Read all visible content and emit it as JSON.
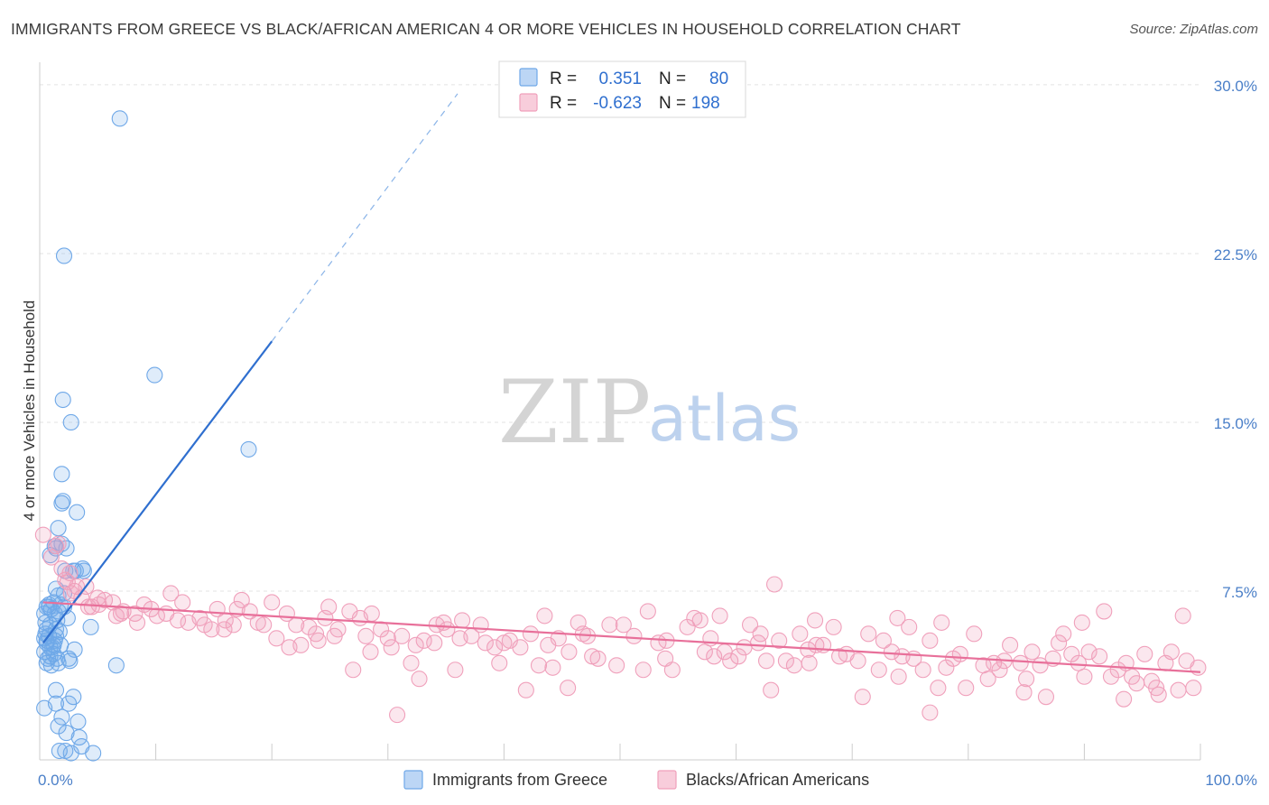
{
  "title": "IMMIGRANTS FROM GREECE VS BLACK/AFRICAN AMERICAN 4 OR MORE VEHICLES IN HOUSEHOLD CORRELATION CHART",
  "source": "Source: ZipAtlas.com",
  "watermark": {
    "zip": "ZIP",
    "atlas": "atlas"
  },
  "legend": {
    "r_label": "R =",
    "n_label": "N =",
    "rows": [
      {
        "r": "0.351",
        "n": "80",
        "color": "#6fa8e8"
      },
      {
        "r": "-0.623",
        "n": "198",
        "color": "#f0a0bb"
      }
    ]
  },
  "bottom_legend": [
    {
      "label": "Immigrants from Greece",
      "color": "#6fa8e8"
    },
    {
      "label": "Blacks/African Americans",
      "color": "#f0a0bb"
    }
  ],
  "chart_data": {
    "type": "scatter",
    "title": "IMMIGRANTS FROM GREECE VS BLACK/AFRICAN AMERICAN 4 OR MORE VEHICLES IN HOUSEHOLD CORRELATION CHART",
    "xlabel": "",
    "ylabel": "4 or more Vehicles in Household",
    "xlim": [
      0,
      100
    ],
    "ylim": [
      0,
      31
    ],
    "x_ticks": [
      "0.0%",
      "100.0%"
    ],
    "y_ticks": [
      {
        "value": 7.5,
        "label": "7.5%"
      },
      {
        "value": 15.0,
        "label": "15.0%"
      },
      {
        "value": 22.5,
        "label": "22.5%"
      },
      {
        "value": 30.0,
        "label": "30.0%"
      }
    ],
    "grid": true,
    "legend_position": "top-center",
    "series": [
      {
        "name": "Immigrants from Greece",
        "color": "#6fa8e8",
        "line_color": "#2f6fcf",
        "trend": {
          "x0": 0.3,
          "y0": 5.2,
          "x1": 20.0,
          "y1": 18.6,
          "dash_x1": 36.0,
          "dash_y1": 29.6
        },
        "points": [
          [
            6.9,
            28.5
          ],
          [
            2.1,
            22.4
          ],
          [
            9.9,
            17.1
          ],
          [
            2.0,
            16.0
          ],
          [
            2.7,
            15.0
          ],
          [
            18.0,
            13.8
          ],
          [
            1.9,
            12.7
          ],
          [
            1.9,
            11.4
          ],
          [
            2.0,
            11.5
          ],
          [
            3.2,
            11.0
          ],
          [
            1.6,
            10.3
          ],
          [
            1.3,
            9.5
          ],
          [
            1.4,
            9.4
          ],
          [
            1.9,
            9.6
          ],
          [
            2.3,
            9.4
          ],
          [
            0.9,
            9.1
          ],
          [
            2.9,
            8.4
          ],
          [
            2.2,
            8.4
          ],
          [
            3.7,
            8.5
          ],
          [
            3.8,
            8.4
          ],
          [
            3.1,
            8.4
          ],
          [
            1.4,
            7.6
          ],
          [
            2.1,
            7.4
          ],
          [
            1.6,
            7.3
          ],
          [
            0.6,
            6.8
          ],
          [
            1.0,
            6.7
          ],
          [
            2.1,
            6.8
          ],
          [
            0.8,
            6.8
          ],
          [
            1.3,
            6.5
          ],
          [
            0.4,
            6.5
          ],
          [
            1.6,
            6.6
          ],
          [
            1.5,
            6.2
          ],
          [
            0.6,
            5.8
          ],
          [
            0.9,
            6.0
          ],
          [
            1.4,
            5.8
          ],
          [
            0.5,
            5.6
          ],
          [
            0.8,
            5.5
          ],
          [
            0.4,
            5.4
          ],
          [
            1.4,
            5.5
          ],
          [
            0.6,
            5.3
          ],
          [
            1.3,
            5.3
          ],
          [
            0.6,
            5.2
          ],
          [
            0.9,
            5.0
          ],
          [
            1.2,
            5.1
          ],
          [
            1.8,
            5.1
          ],
          [
            0.4,
            4.8
          ],
          [
            1.2,
            4.7
          ],
          [
            0.7,
            4.5
          ],
          [
            0.6,
            4.3
          ],
          [
            1.6,
            4.3
          ],
          [
            2.6,
            4.4
          ],
          [
            0.9,
            4.6
          ],
          [
            1.5,
            4.5
          ],
          [
            2.5,
            4.5
          ],
          [
            6.6,
            4.2
          ],
          [
            4.4,
            5.9
          ],
          [
            1.4,
            3.1
          ],
          [
            2.9,
            2.8
          ],
          [
            2.5,
            2.5
          ],
          [
            1.4,
            2.5
          ],
          [
            0.4,
            2.3
          ],
          [
            1.9,
            1.9
          ],
          [
            2.3,
            1.2
          ],
          [
            3.3,
            1.7
          ],
          [
            3.4,
            1.0
          ],
          [
            1.6,
            1.5
          ],
          [
            1.7,
            0.4
          ],
          [
            2.7,
            0.3
          ],
          [
            4.6,
            0.3
          ],
          [
            3.6,
            0.6
          ],
          [
            2.2,
            0.4
          ],
          [
            0.8,
            6.9
          ],
          [
            1.8,
            6.9
          ],
          [
            1.1,
            5.0
          ],
          [
            3.0,
            4.9
          ],
          [
            1.0,
            4.2
          ],
          [
            1.7,
            5.7
          ],
          [
            0.5,
            6.1
          ],
          [
            2.4,
            6.3
          ],
          [
            1.2,
            7.0
          ]
        ]
      },
      {
        "name": "Blacks/African Americans",
        "color": "#f0a0bb",
        "line_color": "#e8709a",
        "trend": {
          "x0": 0.3,
          "y0": 7.0,
          "x1": 100.0,
          "y1": 3.9
        },
        "points": [
          [
            0.3,
            10.0
          ],
          [
            1.4,
            9.5
          ],
          [
            1.6,
            9.6
          ],
          [
            1.9,
            8.5
          ],
          [
            2.2,
            8.0
          ],
          [
            2.6,
            8.3
          ],
          [
            3.2,
            7.7
          ],
          [
            4.0,
            7.7
          ],
          [
            3.0,
            7.5
          ],
          [
            5.6,
            7.1
          ],
          [
            4.2,
            6.8
          ],
          [
            5.1,
            6.9
          ],
          [
            6.6,
            6.4
          ],
          [
            7.2,
            6.6
          ],
          [
            8.2,
            6.5
          ],
          [
            9.0,
            6.9
          ],
          [
            9.6,
            6.7
          ],
          [
            10.9,
            6.5
          ],
          [
            11.3,
            7.4
          ],
          [
            11.9,
            6.2
          ],
          [
            12.3,
            7.0
          ],
          [
            12.8,
            6.1
          ],
          [
            13.8,
            6.3
          ],
          [
            14.2,
            6.0
          ],
          [
            14.8,
            5.8
          ],
          [
            15.3,
            6.7
          ],
          [
            15.9,
            5.8
          ],
          [
            16.0,
            6.2
          ],
          [
            17.4,
            7.1
          ],
          [
            17.0,
            6.7
          ],
          [
            18.1,
            6.6
          ],
          [
            18.8,
            6.1
          ],
          [
            19.3,
            6.0
          ],
          [
            20.0,
            7.0
          ],
          [
            20.4,
            5.4
          ],
          [
            21.3,
            6.5
          ],
          [
            22.1,
            6.0
          ],
          [
            22.5,
            5.1
          ],
          [
            23.2,
            5.9
          ],
          [
            24.0,
            5.3
          ],
          [
            24.6,
            6.3
          ],
          [
            25.4,
            5.5
          ],
          [
            26.7,
            6.6
          ],
          [
            27.6,
            6.3
          ],
          [
            28.1,
            5.5
          ],
          [
            28.6,
            6.5
          ],
          [
            29.4,
            5.8
          ],
          [
            30.0,
            5.4
          ],
          [
            30.3,
            5.0
          ],
          [
            31.2,
            5.5
          ],
          [
            32.0,
            4.3
          ],
          [
            32.4,
            5.1
          ],
          [
            33.1,
            5.3
          ],
          [
            34.0,
            5.2
          ],
          [
            34.8,
            6.1
          ],
          [
            35.1,
            5.8
          ],
          [
            36.2,
            5.4
          ],
          [
            36.4,
            6.2
          ],
          [
            37.2,
            5.5
          ],
          [
            38.0,
            6.0
          ],
          [
            38.4,
            5.2
          ],
          [
            39.2,
            5.0
          ],
          [
            40.0,
            5.2
          ],
          [
            40.5,
            5.3
          ],
          [
            41.4,
            5.0
          ],
          [
            42.3,
            5.6
          ],
          [
            43.0,
            4.2
          ],
          [
            43.8,
            5.1
          ],
          [
            44.7,
            5.4
          ],
          [
            45.6,
            4.8
          ],
          [
            46.4,
            6.1
          ],
          [
            46.8,
            5.6
          ],
          [
            47.2,
            5.5
          ],
          [
            47.6,
            4.6
          ],
          [
            48.1,
            4.5
          ],
          [
            49.1,
            6.0
          ],
          [
            49.7,
            4.2
          ],
          [
            50.3,
            6.0
          ],
          [
            51.2,
            5.5
          ],
          [
            52.0,
            4.0
          ],
          [
            52.4,
            6.6
          ],
          [
            53.3,
            5.2
          ],
          [
            54.0,
            5.3
          ],
          [
            54.5,
            4.0
          ],
          [
            55.8,
            5.9
          ],
          [
            56.4,
            6.3
          ],
          [
            57.3,
            4.8
          ],
          [
            57.8,
            5.4
          ],
          [
            58.1,
            4.6
          ],
          [
            58.6,
            6.4
          ],
          [
            59.5,
            4.4
          ],
          [
            60.2,
            4.6
          ],
          [
            61.2,
            6.0
          ],
          [
            61.9,
            5.2
          ],
          [
            62.6,
            4.4
          ],
          [
            63.3,
            7.8
          ],
          [
            63.7,
            5.3
          ],
          [
            64.3,
            4.4
          ],
          [
            65.0,
            4.2
          ],
          [
            65.5,
            5.6
          ],
          [
            66.2,
            4.9
          ],
          [
            66.9,
            5.1
          ],
          [
            67.5,
            5.1
          ],
          [
            68.4,
            5.9
          ],
          [
            68.9,
            4.6
          ],
          [
            69.5,
            4.7
          ],
          [
            70.5,
            4.4
          ],
          [
            71.4,
            5.6
          ],
          [
            72.3,
            4.0
          ],
          [
            72.7,
            5.3
          ],
          [
            73.4,
            4.8
          ],
          [
            74.3,
            4.6
          ],
          [
            74.9,
            5.9
          ],
          [
            75.3,
            4.5
          ],
          [
            76.1,
            4.0
          ],
          [
            76.7,
            5.3
          ],
          [
            77.4,
            3.2
          ],
          [
            77.7,
            6.1
          ],
          [
            78.1,
            4.1
          ],
          [
            78.7,
            4.5
          ],
          [
            79.3,
            4.7
          ],
          [
            80.5,
            5.6
          ],
          [
            81.3,
            4.2
          ],
          [
            81.7,
            3.6
          ],
          [
            82.2,
            4.3
          ],
          [
            82.7,
            4.0
          ],
          [
            83.1,
            4.4
          ],
          [
            83.6,
            5.1
          ],
          [
            84.5,
            4.3
          ],
          [
            85.0,
            3.6
          ],
          [
            85.5,
            4.8
          ],
          [
            86.2,
            4.2
          ],
          [
            86.7,
            2.8
          ],
          [
            87.3,
            4.5
          ],
          [
            87.8,
            5.2
          ],
          [
            88.2,
            5.6
          ],
          [
            88.9,
            4.7
          ],
          [
            89.5,
            4.3
          ],
          [
            90.4,
            4.8
          ],
          [
            91.3,
            4.6
          ],
          [
            91.7,
            6.6
          ],
          [
            92.3,
            3.7
          ],
          [
            92.9,
            4.0
          ],
          [
            93.6,
            4.3
          ],
          [
            94.1,
            3.7
          ],
          [
            94.5,
            3.4
          ],
          [
            95.2,
            4.7
          ],
          [
            95.8,
            3.5
          ],
          [
            96.4,
            2.9
          ],
          [
            97.0,
            4.3
          ],
          [
            97.5,
            4.8
          ],
          [
            98.1,
            3.1
          ],
          [
            98.8,
            4.4
          ],
          [
            99.4,
            3.2
          ],
          [
            99.8,
            4.1
          ],
          [
            30.8,
            2.0
          ],
          [
            41.9,
            3.1
          ],
          [
            45.5,
            3.2
          ],
          [
            63.0,
            3.1
          ],
          [
            66.3,
            4.3
          ],
          [
            70.9,
            2.8
          ],
          [
            74.0,
            3.7
          ],
          [
            76.7,
            2.1
          ],
          [
            79.8,
            3.2
          ],
          [
            84.8,
            3.0
          ],
          [
            90.0,
            3.7
          ],
          [
            93.4,
            2.7
          ],
          [
            96.2,
            3.2
          ],
          [
            59.0,
            4.8
          ],
          [
            53.9,
            4.5
          ],
          [
            44.2,
            4.1
          ],
          [
            39.6,
            4.3
          ],
          [
            35.8,
            4.0
          ],
          [
            32.7,
            3.6
          ],
          [
            28.5,
            4.8
          ],
          [
            27.0,
            4.0
          ],
          [
            25.7,
            5.8
          ],
          [
            23.8,
            5.6
          ],
          [
            21.5,
            5.0
          ],
          [
            16.7,
            6.0
          ],
          [
            10.1,
            6.4
          ],
          [
            8.4,
            6.1
          ],
          [
            7.0,
            6.5
          ],
          [
            6.3,
            7.0
          ],
          [
            5.0,
            7.2
          ],
          [
            4.5,
            6.8
          ],
          [
            3.6,
            7.2
          ],
          [
            2.4,
            7.9
          ],
          [
            1.0,
            9.0
          ],
          [
            2.7,
            7.4
          ],
          [
            60.7,
            5.0
          ],
          [
            62.1,
            5.6
          ],
          [
            89.8,
            6.1
          ],
          [
            98.5,
            6.4
          ],
          [
            73.9,
            6.3
          ],
          [
            66.8,
            6.2
          ],
          [
            56.9,
            6.2
          ],
          [
            43.5,
            6.4
          ],
          [
            34.2,
            6.0
          ],
          [
            24.9,
            6.8
          ]
        ]
      }
    ]
  }
}
